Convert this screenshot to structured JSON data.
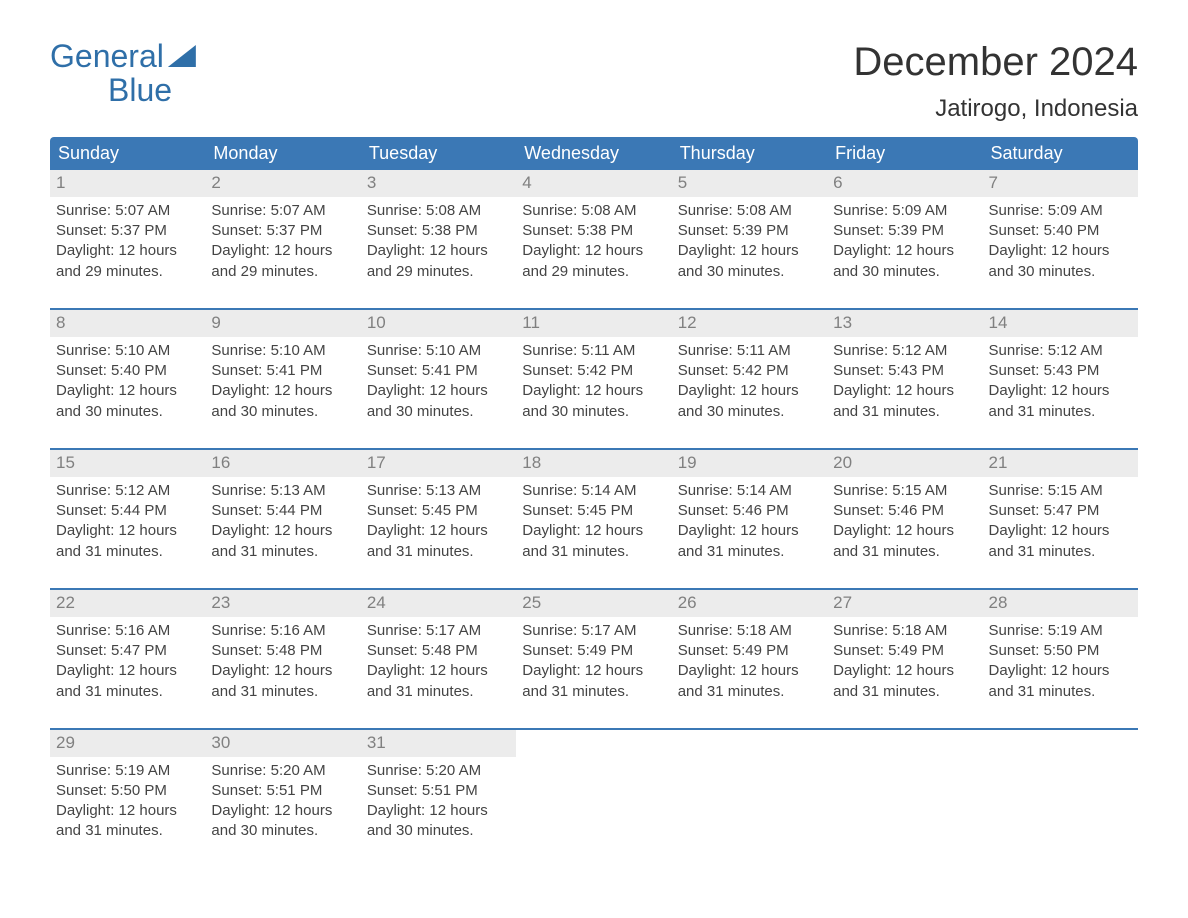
{
  "logo": {
    "word1": "General",
    "word2": "Blue"
  },
  "title": "December 2024",
  "subtitle": "Jatirogo, Indonesia",
  "colors": {
    "brand_blue": "#3b78b5",
    "logo_blue": "#2f6fa8",
    "daynum_bg": "#ececec",
    "daynum_fg": "#808080",
    "text": "#444444",
    "bg": "#ffffff",
    "week_border": "#3b78b5"
  },
  "day_headers": [
    "Sunday",
    "Monday",
    "Tuesday",
    "Wednesday",
    "Thursday",
    "Friday",
    "Saturday"
  ],
  "days": [
    {
      "n": 1,
      "sunrise": "5:07 AM",
      "sunset": "5:37 PM",
      "daylight": "12 hours and 29 minutes."
    },
    {
      "n": 2,
      "sunrise": "5:07 AM",
      "sunset": "5:37 PM",
      "daylight": "12 hours and 29 minutes."
    },
    {
      "n": 3,
      "sunrise": "5:08 AM",
      "sunset": "5:38 PM",
      "daylight": "12 hours and 29 minutes."
    },
    {
      "n": 4,
      "sunrise": "5:08 AM",
      "sunset": "5:38 PM",
      "daylight": "12 hours and 29 minutes."
    },
    {
      "n": 5,
      "sunrise": "5:08 AM",
      "sunset": "5:39 PM",
      "daylight": "12 hours and 30 minutes."
    },
    {
      "n": 6,
      "sunrise": "5:09 AM",
      "sunset": "5:39 PM",
      "daylight": "12 hours and 30 minutes."
    },
    {
      "n": 7,
      "sunrise": "5:09 AM",
      "sunset": "5:40 PM",
      "daylight": "12 hours and 30 minutes."
    },
    {
      "n": 8,
      "sunrise": "5:10 AM",
      "sunset": "5:40 PM",
      "daylight": "12 hours and 30 minutes."
    },
    {
      "n": 9,
      "sunrise": "5:10 AM",
      "sunset": "5:41 PM",
      "daylight": "12 hours and 30 minutes."
    },
    {
      "n": 10,
      "sunrise": "5:10 AM",
      "sunset": "5:41 PM",
      "daylight": "12 hours and 30 minutes."
    },
    {
      "n": 11,
      "sunrise": "5:11 AM",
      "sunset": "5:42 PM",
      "daylight": "12 hours and 30 minutes."
    },
    {
      "n": 12,
      "sunrise": "5:11 AM",
      "sunset": "5:42 PM",
      "daylight": "12 hours and 30 minutes."
    },
    {
      "n": 13,
      "sunrise": "5:12 AM",
      "sunset": "5:43 PM",
      "daylight": "12 hours and 31 minutes."
    },
    {
      "n": 14,
      "sunrise": "5:12 AM",
      "sunset": "5:43 PM",
      "daylight": "12 hours and 31 minutes."
    },
    {
      "n": 15,
      "sunrise": "5:12 AM",
      "sunset": "5:44 PM",
      "daylight": "12 hours and 31 minutes."
    },
    {
      "n": 16,
      "sunrise": "5:13 AM",
      "sunset": "5:44 PM",
      "daylight": "12 hours and 31 minutes."
    },
    {
      "n": 17,
      "sunrise": "5:13 AM",
      "sunset": "5:45 PM",
      "daylight": "12 hours and 31 minutes."
    },
    {
      "n": 18,
      "sunrise": "5:14 AM",
      "sunset": "5:45 PM",
      "daylight": "12 hours and 31 minutes."
    },
    {
      "n": 19,
      "sunrise": "5:14 AM",
      "sunset": "5:46 PM",
      "daylight": "12 hours and 31 minutes."
    },
    {
      "n": 20,
      "sunrise": "5:15 AM",
      "sunset": "5:46 PM",
      "daylight": "12 hours and 31 minutes."
    },
    {
      "n": 21,
      "sunrise": "5:15 AM",
      "sunset": "5:47 PM",
      "daylight": "12 hours and 31 minutes."
    },
    {
      "n": 22,
      "sunrise": "5:16 AM",
      "sunset": "5:47 PM",
      "daylight": "12 hours and 31 minutes."
    },
    {
      "n": 23,
      "sunrise": "5:16 AM",
      "sunset": "5:48 PM",
      "daylight": "12 hours and 31 minutes."
    },
    {
      "n": 24,
      "sunrise": "5:17 AM",
      "sunset": "5:48 PM",
      "daylight": "12 hours and 31 minutes."
    },
    {
      "n": 25,
      "sunrise": "5:17 AM",
      "sunset": "5:49 PM",
      "daylight": "12 hours and 31 minutes."
    },
    {
      "n": 26,
      "sunrise": "5:18 AM",
      "sunset": "5:49 PM",
      "daylight": "12 hours and 31 minutes."
    },
    {
      "n": 27,
      "sunrise": "5:18 AM",
      "sunset": "5:49 PM",
      "daylight": "12 hours and 31 minutes."
    },
    {
      "n": 28,
      "sunrise": "5:19 AM",
      "sunset": "5:50 PM",
      "daylight": "12 hours and 31 minutes."
    },
    {
      "n": 29,
      "sunrise": "5:19 AM",
      "sunset": "5:50 PM",
      "daylight": "12 hours and 31 minutes."
    },
    {
      "n": 30,
      "sunrise": "5:20 AM",
      "sunset": "5:51 PM",
      "daylight": "12 hours and 30 minutes."
    },
    {
      "n": 31,
      "sunrise": "5:20 AM",
      "sunset": "5:51 PM",
      "daylight": "12 hours and 30 minutes."
    }
  ],
  "labels": {
    "sunrise_prefix": "Sunrise: ",
    "sunset_prefix": "Sunset: ",
    "daylight_prefix": "Daylight: "
  },
  "layout": {
    "first_day_column": 0,
    "weeks": 5
  }
}
